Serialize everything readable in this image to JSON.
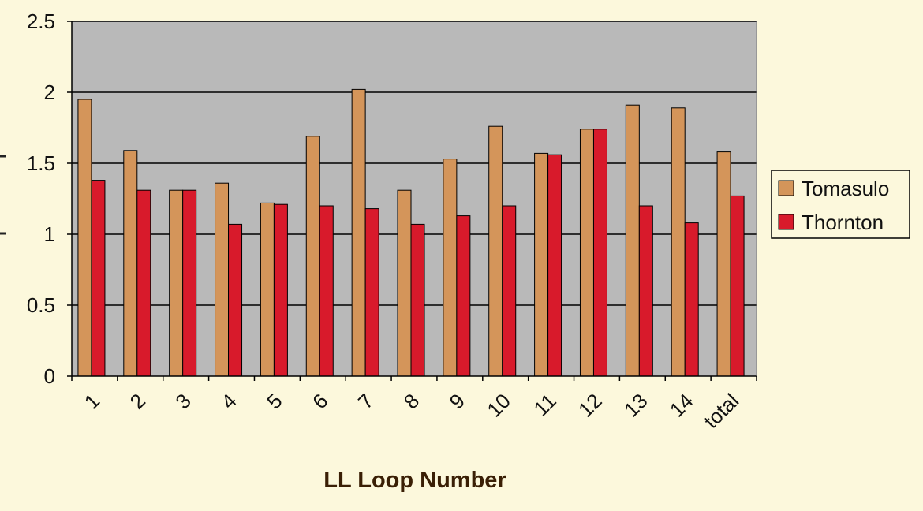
{
  "chart_data": {
    "type": "bar",
    "title": "",
    "xlabel": "LL Loop Number",
    "ylabel": "",
    "ylim": [
      0,
      2.5
    ],
    "yticks": [
      0,
      0.5,
      1,
      1.5,
      2,
      2.5
    ],
    "ytick_labels": [
      "0",
      "0.5",
      "1",
      "1.5",
      "2",
      "2.5"
    ],
    "grid": true,
    "legend_position": "right",
    "categories": [
      "1",
      "2",
      "3",
      "4",
      "5",
      "6",
      "7",
      "8",
      "9",
      "10",
      "11",
      "12",
      "13",
      "14",
      "total"
    ],
    "series": [
      {
        "name": "Tomasulo",
        "color": "#d4955a",
        "values": [
          1.95,
          1.59,
          1.31,
          1.36,
          1.22,
          1.69,
          2.02,
          1.31,
          1.53,
          1.76,
          1.57,
          1.74,
          1.91,
          1.89,
          1.58
        ]
      },
      {
        "name": "Thornton",
        "color": "#d81a2b",
        "values": [
          1.38,
          1.31,
          1.31,
          1.07,
          1.21,
          1.2,
          1.18,
          1.07,
          1.13,
          1.2,
          1.56,
          1.74,
          1.2,
          1.08,
          1.27
        ]
      }
    ],
    "plot_background": "#b9b9b9"
  }
}
